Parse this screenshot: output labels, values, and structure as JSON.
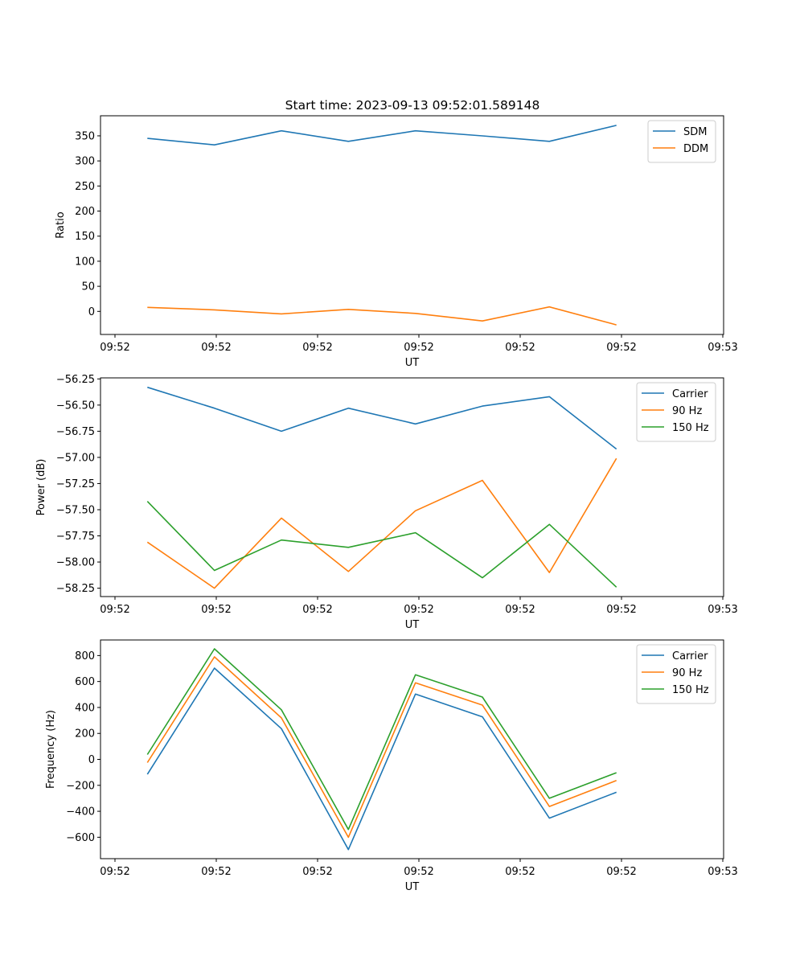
{
  "figure_title": "Start time: 2023-09-13 09:52:01.589148",
  "chart_data": [
    {
      "type": "line",
      "title": "Start time: 2023-09-13 09:52:01.589148",
      "xlabel": "UT",
      "ylabel": "Ratio",
      "xticks": [
        "09:52",
        "09:52",
        "09:52",
        "09:52",
        "09:52",
        "09:52",
        "09:53"
      ],
      "x": [
        0.5,
        1.5,
        2.5,
        3.5,
        4.5,
        5.5,
        6.5,
        7.5
      ],
      "xlim": [
        -0.2,
        9.1
      ],
      "ylim": [
        -46,
        390
      ],
      "yticks": [
        0,
        50,
        100,
        150,
        200,
        250,
        300,
        350
      ],
      "ytick_labels": [
        "0",
        "50",
        "100",
        "150",
        "200",
        "250",
        "300",
        "350"
      ],
      "legend_position": "top-right",
      "series": [
        {
          "name": "SDM",
          "color": "#1f77b4",
          "values": [
            345,
            332,
            360,
            339,
            360,
            350,
            339,
            371
          ]
        },
        {
          "name": "DDM",
          "color": "#ff7f0e",
          "values": [
            8,
            3,
            -5,
            4,
            -4,
            -19,
            9,
            -27
          ]
        }
      ]
    },
    {
      "type": "line",
      "title": "",
      "xlabel": "UT",
      "ylabel": "Power (dB)",
      "xticks": [
        "09:52",
        "09:52",
        "09:52",
        "09:52",
        "09:52",
        "09:52",
        "09:53"
      ],
      "x": [
        0.5,
        1.5,
        2.5,
        3.5,
        4.5,
        5.5,
        6.5,
        7.5
      ],
      "xlim": [
        -0.2,
        9.1
      ],
      "ylim": [
        -58.33,
        -56.24
      ],
      "yticks": [
        -56.25,
        -56.5,
        -56.75,
        -57.0,
        -57.25,
        -57.5,
        -57.75,
        -58.0,
        -58.25
      ],
      "ytick_labels": [
        "−56.25",
        "−56.50",
        "−56.75",
        "−57.00",
        "−57.25",
        "−57.50",
        "−57.75",
        "−58.00",
        "−58.25"
      ],
      "legend_position": "top-right",
      "series": [
        {
          "name": "Carrier",
          "color": "#1f77b4",
          "values": [
            -56.33,
            -56.53,
            -56.75,
            -56.53,
            -56.68,
            -56.51,
            -56.42,
            -56.92
          ]
        },
        {
          "name": "90 Hz",
          "color": "#ff7f0e",
          "values": [
            -57.81,
            -58.25,
            -57.58,
            -58.09,
            -57.51,
            -57.22,
            -58.1,
            -57.01
          ]
        },
        {
          "name": "150 Hz",
          "color": "#2ca02c",
          "values": [
            -57.42,
            -58.08,
            -57.79,
            -57.86,
            -57.72,
            -58.15,
            -57.64,
            -58.24
          ]
        }
      ]
    },
    {
      "type": "line",
      "title": "",
      "xlabel": "UT",
      "ylabel": "Frequency (Hz)",
      "xticks": [
        "09:52",
        "09:52",
        "09:52",
        "09:52",
        "09:52",
        "09:52",
        "09:53"
      ],
      "x": [
        0.5,
        1.5,
        2.5,
        3.5,
        4.5,
        5.5,
        6.5,
        7.5
      ],
      "xlim": [
        -0.2,
        9.1
      ],
      "ylim": [
        -765,
        920
      ],
      "yticks": [
        -600,
        -400,
        -200,
        0,
        200,
        400,
        600,
        800
      ],
      "ytick_labels": [
        "−600",
        "−400",
        "−200",
        "0",
        "200",
        "400",
        "600",
        "800"
      ],
      "legend_position": "top-right",
      "series": [
        {
          "name": "Carrier",
          "color": "#1f77b4",
          "values": [
            -115,
            703,
            237,
            -695,
            503,
            328,
            -453,
            -253
          ]
        },
        {
          "name": "90 Hz",
          "color": "#ff7f0e",
          "values": [
            -25,
            790,
            320,
            -600,
            590,
            418,
            -363,
            -163
          ]
        },
        {
          "name": "150 Hz",
          "color": "#2ca02c",
          "values": [
            37,
            852,
            382,
            -540,
            652,
            480,
            -300,
            -103
          ]
        }
      ]
    }
  ]
}
